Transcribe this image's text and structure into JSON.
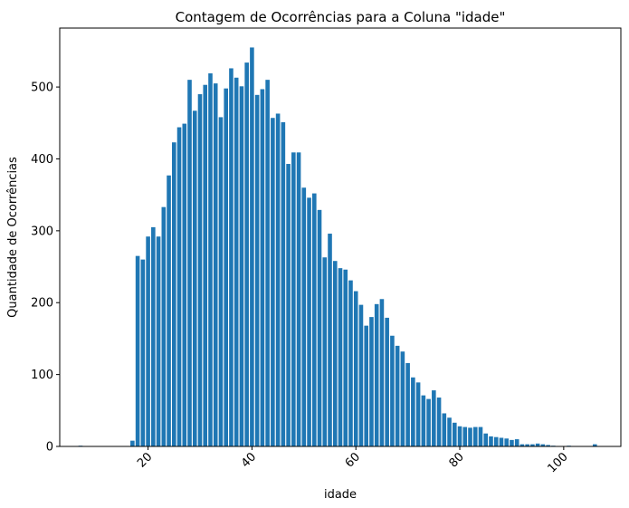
{
  "chart_data": {
    "type": "bar",
    "title": "Contagem de Ocorrências para a Coluna \"idade\"",
    "xlabel": "idade",
    "ylabel": "Quantidade de Ocorrências",
    "xlim": [
      3,
      111
    ],
    "ylim": [
      0,
      582
    ],
    "xticks": [
      20,
      40,
      60,
      80,
      100
    ],
    "xtick_labels": [
      "20",
      "40",
      "60",
      "80",
      "100"
    ],
    "xtick_rotation": 45,
    "yticks": [
      0,
      100,
      200,
      300,
      400,
      500
    ],
    "ytick_labels": [
      "0",
      "100",
      "200",
      "300",
      "400",
      "500"
    ],
    "grid": false,
    "bar_color": "#1f77b4",
    "x": [
      7,
      17,
      18,
      19,
      20,
      21,
      22,
      23,
      24,
      25,
      26,
      27,
      28,
      29,
      30,
      31,
      32,
      33,
      34,
      35,
      36,
      37,
      38,
      39,
      40,
      41,
      42,
      43,
      44,
      45,
      46,
      47,
      48,
      49,
      50,
      51,
      52,
      53,
      54,
      55,
      56,
      57,
      58,
      59,
      60,
      61,
      62,
      63,
      64,
      65,
      66,
      67,
      68,
      69,
      70,
      71,
      72,
      73,
      74,
      75,
      76,
      77,
      78,
      79,
      80,
      81,
      82,
      83,
      84,
      85,
      86,
      87,
      88,
      89,
      90,
      91,
      92,
      93,
      94,
      95,
      96,
      97,
      98,
      101,
      106
    ],
    "values": [
      1,
      8,
      265,
      260,
      292,
      305,
      292,
      333,
      377,
      423,
      444,
      449,
      510,
      467,
      490,
      503,
      519,
      505,
      458,
      498,
      526,
      513,
      501,
      534,
      555,
      489,
      497,
      510,
      457,
      463,
      451,
      393,
      409,
      409,
      360,
      346,
      352,
      329,
      263,
      296,
      258,
      248,
      246,
      231,
      216,
      197,
      168,
      180,
      198,
      205,
      179,
      154,
      140,
      132,
      116,
      96,
      89,
      71,
      66,
      78,
      68,
      46,
      40,
      33,
      28,
      27,
      26,
      27,
      27,
      18,
      14,
      13,
      12,
      11,
      9,
      10,
      3,
      3,
      3,
      4,
      3,
      2,
      1,
      1,
      3
    ]
  }
}
